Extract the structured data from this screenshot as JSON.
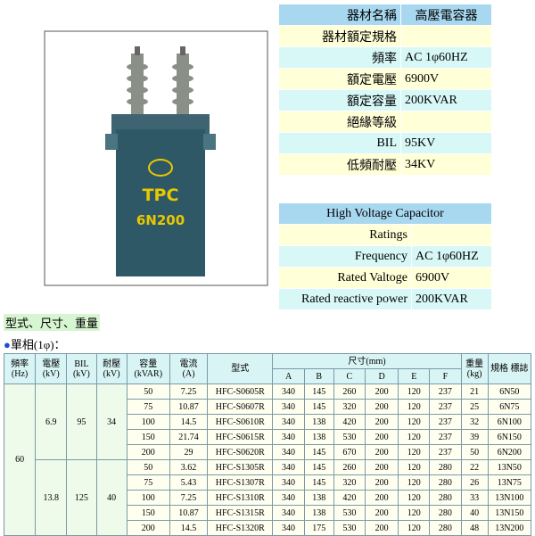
{
  "image": {
    "labels": [
      "TPC",
      "6N200"
    ]
  },
  "spec_table_zh": {
    "rows": [
      [
        "器材名稱",
        "高壓電容器"
      ],
      [
        "器材額定規格"
      ],
      [
        "頻率",
        "AC 1φ60HZ"
      ],
      [
        "額定電壓",
        "6900V"
      ],
      [
        "額定容量",
        "200KVAR"
      ],
      [
        "絕緣等級"
      ],
      [
        "BIL",
        "95KV"
      ],
      [
        "低頻耐壓",
        "34KV"
      ]
    ]
  },
  "spec_table_en": {
    "title": "High Voltage Capacitor",
    "rows": [
      [
        "Ratings"
      ],
      [
        "Frequency",
        "AC 1φ60HZ"
      ],
      [
        "Rated Valtoge",
        "6900V"
      ],
      [
        "Rated reactive power",
        "200KVAR"
      ]
    ]
  },
  "section": {
    "title": "型式、尺寸、重量",
    "subtitle": "單相(1φ)："
  },
  "table": {
    "columns": [
      {
        "label": "頻率",
        "unit": "(Hz)"
      },
      {
        "label": "電壓",
        "unit": "(kV)"
      },
      {
        "label": "BIL",
        "unit": "(kV)"
      },
      {
        "label": "耐壓",
        "unit": "(kV)"
      },
      {
        "label": "容量",
        "unit": "(kVAR)"
      },
      {
        "label": "電流",
        "unit": "(A)"
      },
      {
        "label": "型式"
      },
      {
        "label": "尺寸(mm)"
      },
      {
        "label": "重量",
        "unit": "(kg)"
      },
      {
        "label": "規格 標誌"
      }
    ],
    "dimensions": [
      "A",
      "B",
      "C",
      "D",
      "E",
      "F"
    ],
    "frequency": "60",
    "blocks": [
      {
        "voltage": "6.9",
        "bil": "95",
        "withstand": "34",
        "rows": [
          [
            "50",
            "7.25",
            "HFC-S0605R",
            "340",
            "145",
            "260",
            "200",
            "120",
            "237",
            "21",
            "6N50"
          ],
          [
            "75",
            "10.87",
            "HFC-S0607R",
            "340",
            "145",
            "320",
            "200",
            "120",
            "237",
            "25",
            "6N75"
          ],
          [
            "100",
            "14.5",
            "HFC-S0610R",
            "340",
            "138",
            "420",
            "200",
            "120",
            "237",
            "32",
            "6N100"
          ],
          [
            "150",
            "21.74",
            "HFC-S0615R",
            "340",
            "138",
            "530",
            "200",
            "120",
            "237",
            "39",
            "6N150"
          ],
          [
            "200",
            "29",
            "HFC-S0620R",
            "340",
            "145",
            "670",
            "200",
            "120",
            "237",
            "50",
            "6N200"
          ]
        ]
      },
      {
        "voltage": "13.8",
        "bil": "125",
        "withstand": "40",
        "rows": [
          [
            "50",
            "3.62",
            "HFC-S1305R",
            "340",
            "145",
            "260",
            "200",
            "120",
            "280",
            "22",
            "13N50"
          ],
          [
            "75",
            "5.43",
            "HFC-S1307R",
            "340",
            "145",
            "320",
            "200",
            "120",
            "280",
            "26",
            "13N75"
          ],
          [
            "100",
            "7.25",
            "HFC-S1310R",
            "340",
            "138",
            "420",
            "200",
            "120",
            "280",
            "33",
            "13N100"
          ],
          [
            "150",
            "10.87",
            "HFC-S1315R",
            "340",
            "138",
            "530",
            "200",
            "120",
            "280",
            "40",
            "13N150"
          ],
          [
            "200",
            "14.5",
            "HFC-S1320R",
            "340",
            "175",
            "530",
            "200",
            "120",
            "280",
            "48",
            "13N200"
          ]
        ]
      }
    ]
  }
}
